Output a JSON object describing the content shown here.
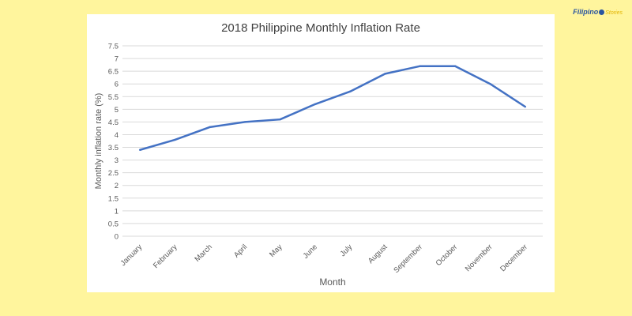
{
  "logo": {
    "part1": "Filipino",
    "part2": "Stories"
  },
  "colors": {
    "background": "#fff59d",
    "line": "#4472c4",
    "grid": "#d9d9d9"
  },
  "chart_data": {
    "type": "line",
    "title": "2018 Philippine Monthly Inflation Rate",
    "xlabel": "Month",
    "ylabel": "Monthly inflation rate (%)",
    "ylim": [
      0,
      7.5
    ],
    "ytick_step": 0.5,
    "grid": true,
    "categories": [
      "January",
      "February",
      "March",
      "April",
      "May",
      "June",
      "July",
      "August",
      "September",
      "October",
      "November",
      "December"
    ],
    "series": [
      {
        "values": [
          3.4,
          3.8,
          4.3,
          4.5,
          4.6,
          5.2,
          5.7,
          6.4,
          6.7,
          6.7,
          6.0,
          5.1
        ]
      }
    ]
  }
}
